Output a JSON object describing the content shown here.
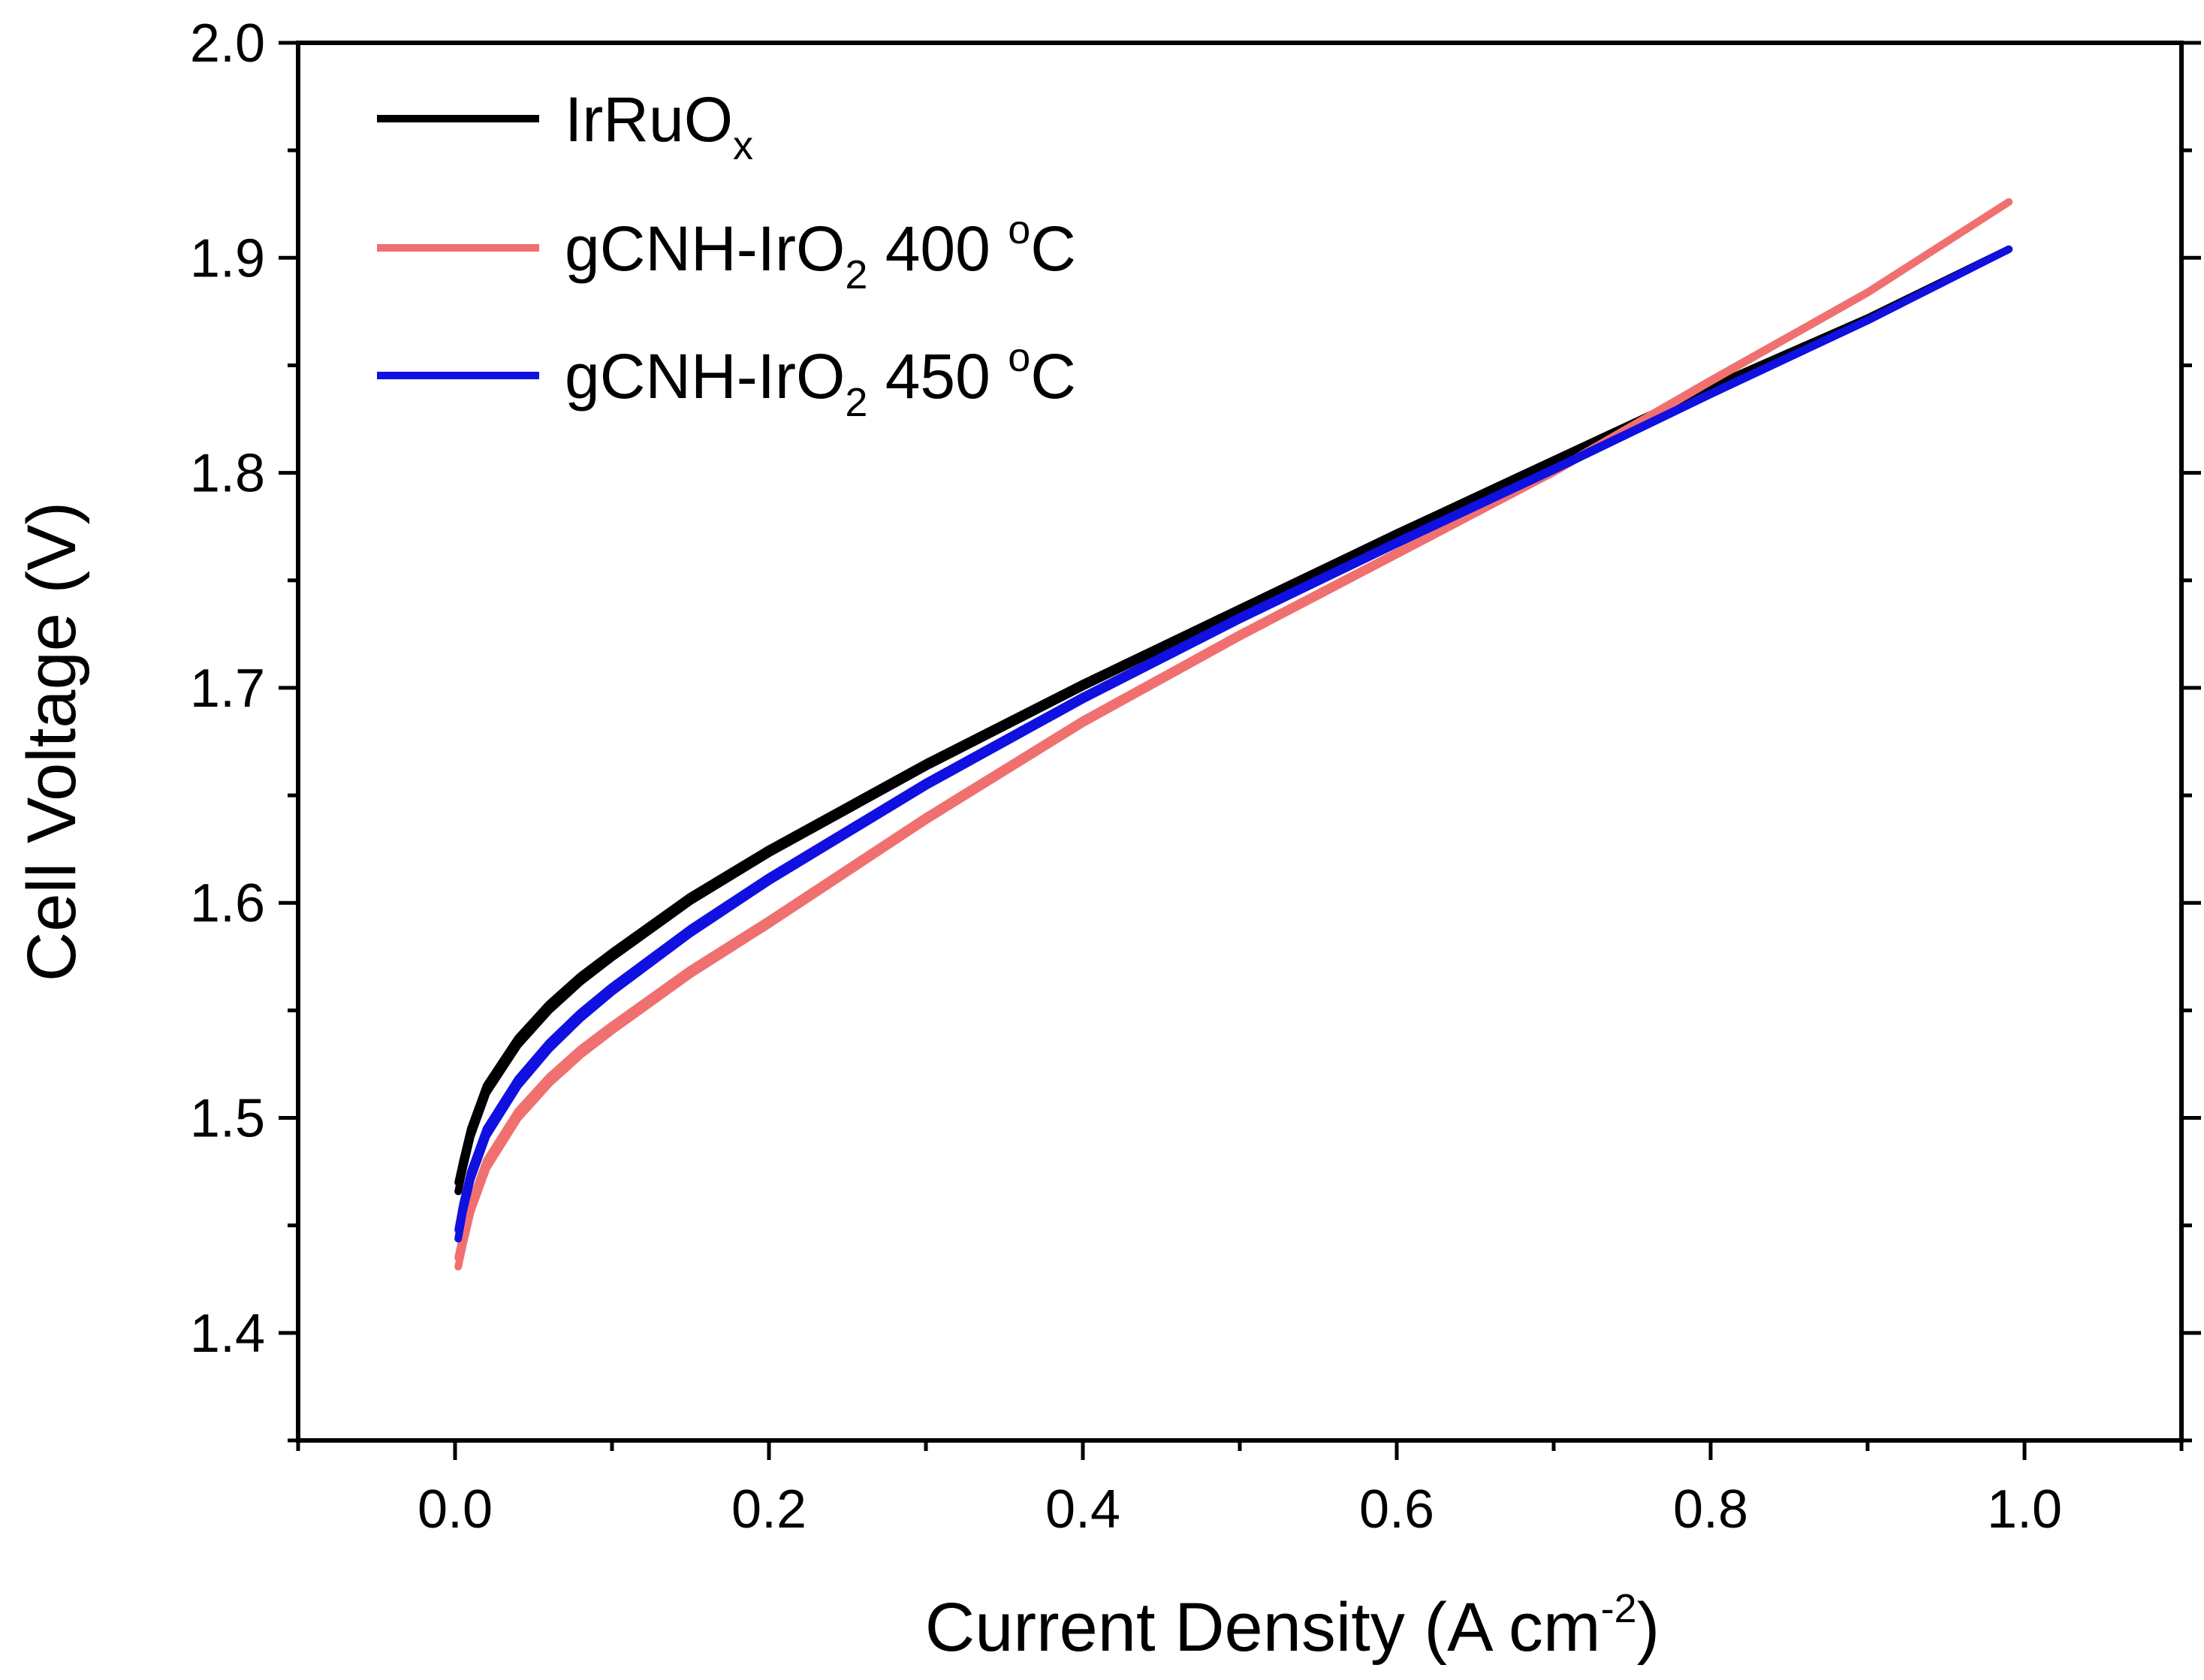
{
  "chart_data": {
    "type": "line",
    "title": "",
    "xlabel": {
      "main": "Current Density (A cm",
      "sup": "-2",
      "close": ")"
    },
    "ylabel": "Cell Voltage (V)",
    "xlim": [
      -0.1,
      1.1
    ],
    "ylim": [
      1.35,
      2.0
    ],
    "x_ticks": [
      0.0,
      0.2,
      0.4,
      0.6,
      0.8,
      1.0
    ],
    "x_tick_labels": [
      "0.0",
      "0.2",
      "0.4",
      "0.6",
      "0.8",
      "1.0"
    ],
    "y_ticks": [
      1.4,
      1.5,
      1.6,
      1.7,
      1.8,
      1.9,
      2.0
    ],
    "y_tick_labels": [
      "1.4",
      "1.5",
      "1.6",
      "1.7",
      "1.8",
      "1.9",
      "2.0"
    ],
    "grid": false,
    "legend_position": "top-left",
    "series": [
      {
        "name": "IrRuO",
        "name_sub": "x",
        "name_suffix": "",
        "color": "#000000",
        "x": [
          0.002,
          0.005,
          0.01,
          0.02,
          0.04,
          0.06,
          0.08,
          0.1,
          0.15,
          0.2,
          0.3,
          0.4,
          0.5,
          0.6,
          0.7,
          0.8,
          0.9,
          0.99
        ],
        "y": [
          1.47,
          1.48,
          1.495,
          1.515,
          1.537,
          1.553,
          1.566,
          1.577,
          1.603,
          1.625,
          1.665,
          1.702,
          1.737,
          1.772,
          1.806,
          1.84,
          1.872,
          1.904
        ]
      },
      {
        "name": "gCNH-IrO",
        "name_sub": "2",
        "name_suffix": " 400 ",
        "name_sup": "o",
        "name_tail": "C",
        "color": "#f07070",
        "x": [
          0.002,
          0.005,
          0.01,
          0.02,
          0.04,
          0.06,
          0.08,
          0.1,
          0.15,
          0.2,
          0.3,
          0.4,
          0.5,
          0.6,
          0.7,
          0.8,
          0.9,
          0.99
        ],
        "y": [
          1.435,
          1.445,
          1.46,
          1.48,
          1.503,
          1.519,
          1.532,
          1.543,
          1.569,
          1.592,
          1.64,
          1.685,
          1.725,
          1.763,
          1.801,
          1.843,
          1.884,
          1.926
        ]
      },
      {
        "name": "gCNH-IrO",
        "name_sub": "2",
        "name_suffix": " 450 ",
        "name_sup": "o",
        "name_tail": "C",
        "color": "#1010e0",
        "x": [
          0.002,
          0.005,
          0.01,
          0.02,
          0.04,
          0.06,
          0.08,
          0.1,
          0.15,
          0.2,
          0.3,
          0.4,
          0.5,
          0.6,
          0.7,
          0.8,
          0.9,
          0.99
        ],
        "y": [
          1.448,
          1.46,
          1.475,
          1.495,
          1.518,
          1.535,
          1.549,
          1.561,
          1.588,
          1.612,
          1.656,
          1.696,
          1.733,
          1.768,
          1.802,
          1.837,
          1.871,
          1.904
        ]
      }
    ]
  }
}
